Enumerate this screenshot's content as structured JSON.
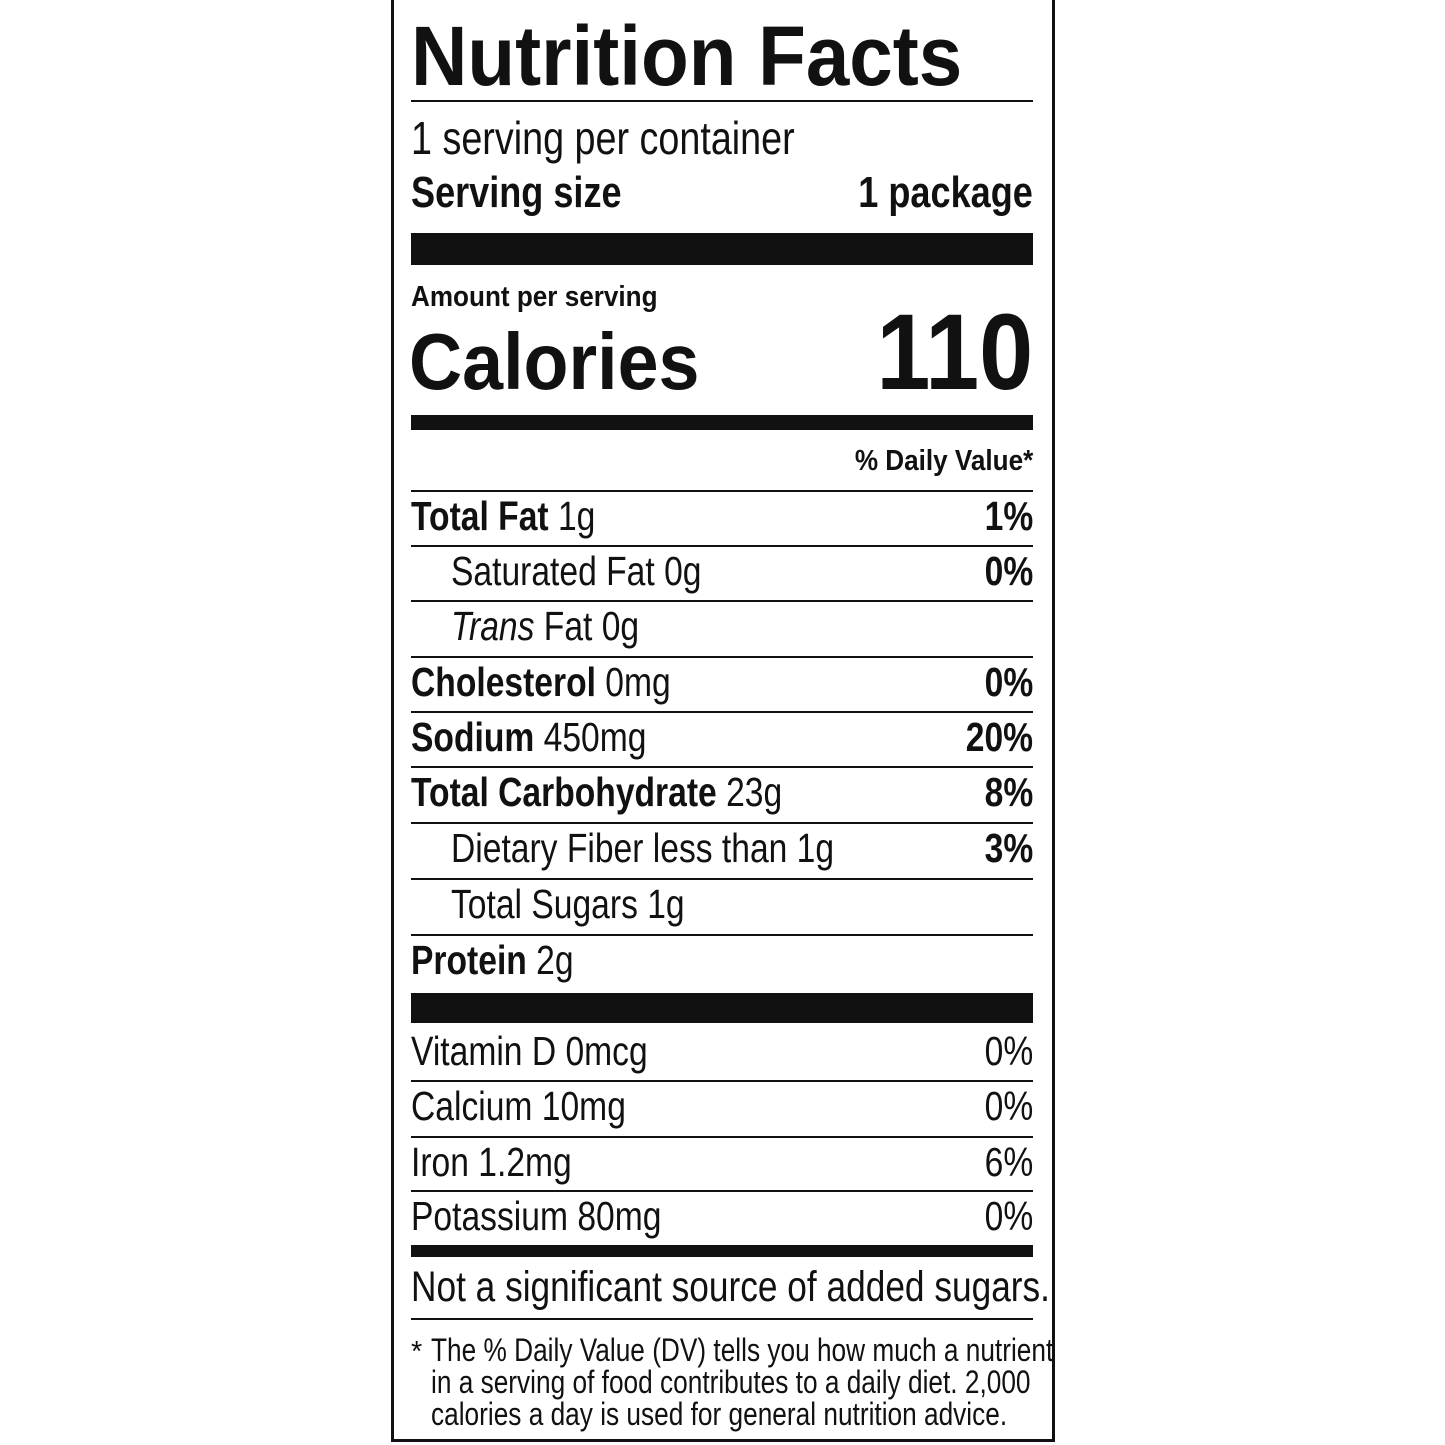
{
  "title": "Nutrition Facts",
  "servings_per_container": "1 serving per container",
  "serving_size_label": "Serving size",
  "serving_size_value": "1 package",
  "amount_per_serving": "Amount per serving",
  "calories_label": "Calories",
  "calories_value": "110",
  "daily_value_header": "% Daily Value*",
  "nutrients": [
    {
      "name": "Total Fat",
      "amount": "1g",
      "dv": "1%",
      "bold": true,
      "indent": false
    },
    {
      "name": "Saturated Fat",
      "amount": "0g",
      "dv": "0%",
      "bold": false,
      "indent": true
    },
    {
      "name_italic": "Trans",
      "name": "Fat",
      "amount": "0g",
      "dv": "",
      "bold": false,
      "indent": true
    },
    {
      "name": "Cholesterol",
      "amount": "0mg",
      "dv": "0%",
      "bold": true,
      "indent": false
    },
    {
      "name": "Sodium",
      "amount": "450mg",
      "dv": "20%",
      "bold": true,
      "indent": false
    },
    {
      "name": "Total Carbohydrate",
      "amount": "23g",
      "dv": "8%",
      "bold": true,
      "indent": false
    },
    {
      "name": "Dietary Fiber",
      "amount": "less than 1g",
      "dv": "3%",
      "bold": false,
      "indent": true
    },
    {
      "name": "Total Sugars",
      "amount": "1g",
      "dv": "",
      "bold": false,
      "indent": true
    },
    {
      "name": "Protein",
      "amount": "2g",
      "dv": "",
      "bold": true,
      "indent": false
    }
  ],
  "vitamins": [
    {
      "name": "Vitamin D",
      "amount": "0mcg",
      "dv": "0%"
    },
    {
      "name": "Calcium",
      "amount": "10mg",
      "dv": "0%"
    },
    {
      "name": "Iron",
      "amount": "1.2mg",
      "dv": "6%"
    },
    {
      "name": "Potassium",
      "amount": "80mg",
      "dv": "0%"
    }
  ],
  "added_sugars_note": "Not a significant source of added sugars.",
  "footnote_mark": "*",
  "footnote_lines": [
    "The % Daily Value (DV) tells you how much a nutrient",
    "in a serving of food contributes to a daily diet. 2,000",
    "calories a day is used for general nutrition advice."
  ]
}
